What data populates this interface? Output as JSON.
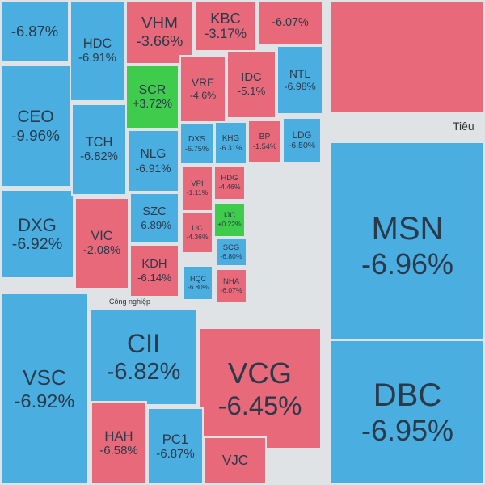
{
  "section_labels": [
    "Công nghiệp",
    "Tiêu"
  ],
  "tiles": [
    {
      "change": "-6.87%",
      "color": "#4aaee0"
    },
    {
      "ticker": "CEO",
      "change": "-9.96%",
      "color": "#4aaee0"
    },
    {
      "ticker": "DXG",
      "change": "-6.92%",
      "color": "#4aaee0"
    },
    {
      "ticker": "HDC",
      "change": "-6.91%",
      "color": "#4aaee0"
    },
    {
      "ticker": "TCH",
      "change": "-6.82%",
      "color": "#4aaee0"
    },
    {
      "ticker": "VIC",
      "change": "-2.08%",
      "color": "#e8697a"
    },
    {
      "ticker": "VHM",
      "change": "-3.66%",
      "color": "#e8697a"
    },
    {
      "ticker": "KBC",
      "change": "-3.17%",
      "color": "#e8697a"
    },
    {
      "change": "-6.07%",
      "color": "#e8697a"
    },
    {
      "ticker": "SCR",
      "change": "+3.72%",
      "color": "#3fcb4c"
    },
    {
      "ticker": "VRE",
      "change": "-4.6%",
      "color": "#e8697a"
    },
    {
      "ticker": "IDC",
      "change": "-5.1%",
      "color": "#e8697a"
    },
    {
      "ticker": "NTL",
      "change": "-6.98%",
      "color": "#4aaee0"
    },
    {
      "ticker": "NLG",
      "change": "-6.91%",
      "color": "#4aaee0"
    },
    {
      "ticker": "SZC",
      "change": "-6.89%",
      "color": "#4aaee0"
    },
    {
      "ticker": "KDH",
      "change": "-6.14%",
      "color": "#e8697a"
    },
    {
      "ticker": "DXS",
      "change": "-6.75%",
      "color": "#4aaee0"
    },
    {
      "ticker": "KHG",
      "change": "-6.31%",
      "color": "#4aaee0"
    },
    {
      "ticker": "BP",
      "change": "-1.54%",
      "color": "#e8697a"
    },
    {
      "ticker": "LDG",
      "change": "-6.50%",
      "color": "#4aaee0"
    },
    {
      "ticker": "VPI",
      "change": "-1.11%",
      "color": "#e8697a"
    },
    {
      "ticker": "HDG",
      "change": "-4.46%",
      "color": "#e8697a"
    },
    {
      "ticker": "IJC",
      "change": "+0.22%",
      "color": "#3fcb4c"
    },
    {
      "ticker": "UC",
      "change": "-4.36%",
      "color": "#e8697a"
    },
    {
      "ticker": "SCG",
      "change": "-6.80%",
      "color": "#4aaee0"
    },
    {
      "ticker": "HQC",
      "change": "-6.80%",
      "color": "#4aaee0"
    },
    {
      "ticker": "NHA",
      "change": "-6.07%",
      "color": "#e8697a"
    },
    {
      "ticker": "VSC",
      "change": "-6.92%",
      "color": "#4aaee0"
    },
    {
      "ticker": "CII",
      "change": "-6.82%",
      "color": "#4aaee0"
    },
    {
      "ticker": "VCG",
      "change": "-6.45%",
      "color": "#e8697a"
    },
    {
      "ticker": "HAH",
      "change": "-6.58%",
      "color": "#e8697a"
    },
    {
      "ticker": "PC1",
      "change": "-6.87%",
      "color": "#4aaee0"
    },
    {
      "ticker": "VJC",
      "color": "#e8697a"
    },
    {
      "color": "#e8697a"
    },
    {
      "ticker": "MSN",
      "change": "-6.96%",
      "color": "#4aaee0"
    },
    {
      "ticker": "DBC",
      "change": "-6.95%",
      "color": "#4aaee0"
    }
  ]
}
